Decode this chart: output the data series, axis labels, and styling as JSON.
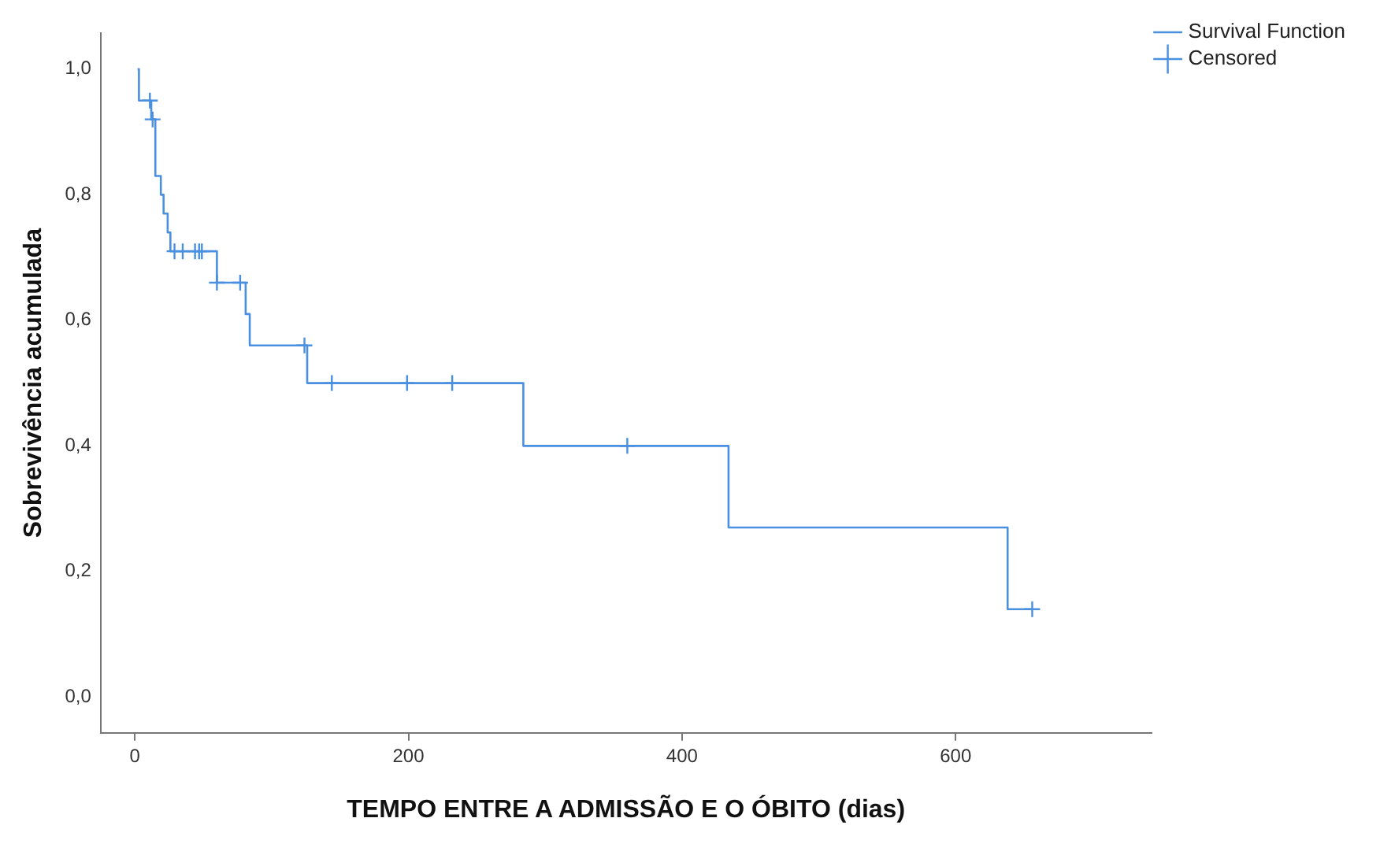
{
  "chart_data": {
    "type": "step",
    "xlabel": "TEMPO ENTRE A ADMISSÃO E O ÓBITO (dias)",
    "ylabel": "Sobrevivência acumulada",
    "xlim": [
      -25,
      743
    ],
    "xticks": [
      0,
      200,
      400,
      600
    ],
    "ylim": [
      -0.057,
      1.057
    ],
    "yticks": [
      {
        "value": 0,
        "label": "0,0"
      },
      {
        "value": 0.2,
        "label": "0,2"
      },
      {
        "value": 0.4,
        "label": "0,4"
      },
      {
        "value": 0.6,
        "label": "0,6"
      },
      {
        "value": 0.8,
        "label": "0,8"
      },
      {
        "value": 1,
        "label": "1,0"
      }
    ],
    "grid": false,
    "legend": "top right",
    "line_style": "solid",
    "series": [
      {
        "name": "Survival Function",
        "color": "#4a8fe0",
        "marker": "none",
        "x": [
          2,
          3,
          12,
          15,
          19,
          21,
          24,
          26,
          60,
          81,
          84,
          126,
          284,
          434,
          638,
          656
        ],
        "values": [
          1.0,
          0.95,
          0.92,
          0.83,
          0.8,
          0.77,
          0.74,
          0.71,
          0.66,
          0.61,
          0.56,
          0.5,
          0.4,
          0.27,
          0.14,
          0.14
        ]
      },
      {
        "name": "Censored",
        "type": "scatter",
        "color": "#4a8fe0",
        "marker": "cross",
        "x": [
          11,
          13,
          29,
          35,
          44,
          47,
          49,
          60,
          77,
          124,
          144,
          199,
          232,
          360,
          656
        ],
        "values": [
          0.95,
          0.92,
          0.71,
          0.71,
          0.71,
          0.71,
          0.71,
          0.66,
          0.66,
          0.56,
          0.5,
          0.5,
          0.5,
          0.4,
          0.14
        ]
      }
    ]
  }
}
